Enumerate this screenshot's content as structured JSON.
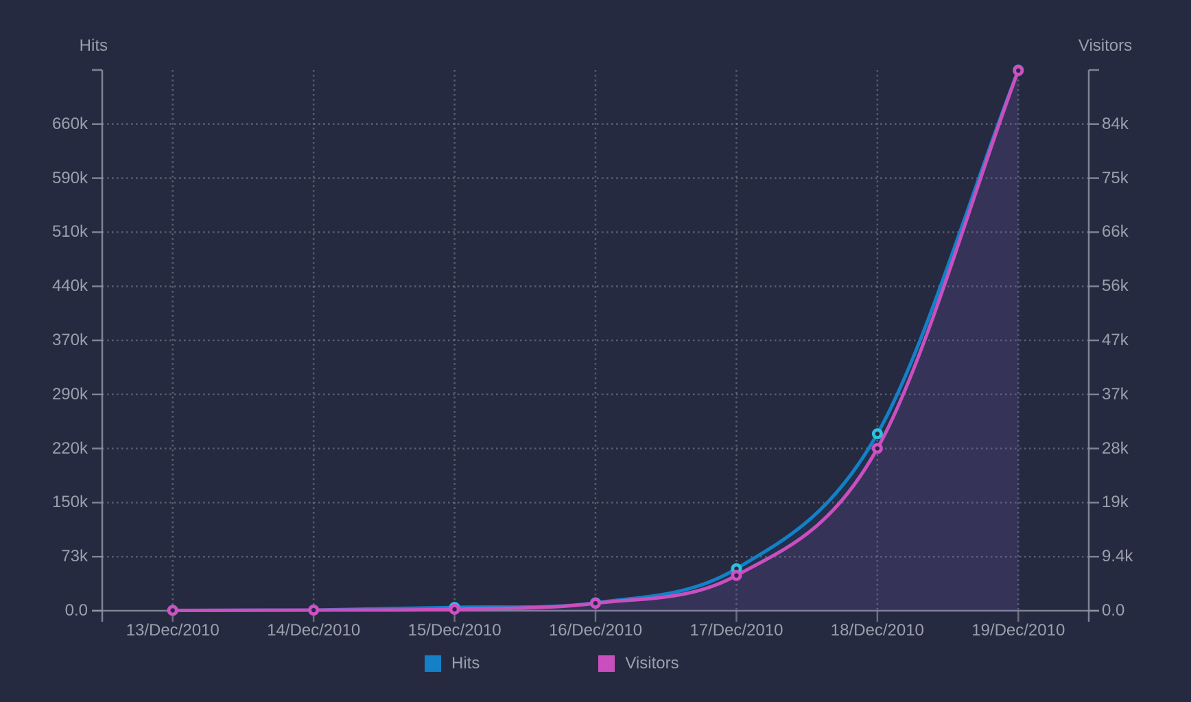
{
  "colors": {
    "background": "#252A40",
    "text": "#9BA0AD",
    "axis": "#8E94A2",
    "grid": "#8E94A2",
    "date_tick": "#6A7080"
  },
  "chart_data": {
    "type": "line",
    "smoothed": true,
    "area_fill": true,
    "grid": "dotted",
    "legend_position": "bottom",
    "categories": [
      "13/Dec/2010",
      "14/Dec/2010",
      "15/Dec/2010",
      "16/Dec/2010",
      "17/Dec/2010",
      "18/Dec/2010",
      "19/Dec/2010"
    ],
    "series": [
      {
        "name": "Hits",
        "axis": "left",
        "color": "#1380C8",
        "marker_color": "#2CC1DC",
        "fill_opacity": 0.08,
        "values": [
          480,
          900,
          4600,
          10700,
          57000,
          240000,
          733000
        ]
      },
      {
        "name": "Visitors",
        "axis": "right",
        "color": "#CA4FBE",
        "marker_color": "#D04FC4",
        "fill_opacity": 0.11,
        "values": [
          60,
          110,
          250,
          1300,
          6100,
          28100,
          93500
        ]
      }
    ],
    "y_axis_left": {
      "title": "Hits",
      "max": 733300,
      "labels": [
        "0.0",
        "73k",
        "150k",
        "220k",
        "290k",
        "370k",
        "440k",
        "510k",
        "590k",
        "660k"
      ]
    },
    "y_axis_right": {
      "title": "Visitors",
      "max": 93600,
      "labels": [
        "0.0",
        "9.4k",
        "19k",
        "28k",
        "37k",
        "47k",
        "56k",
        "66k",
        "75k",
        "84k"
      ]
    }
  }
}
